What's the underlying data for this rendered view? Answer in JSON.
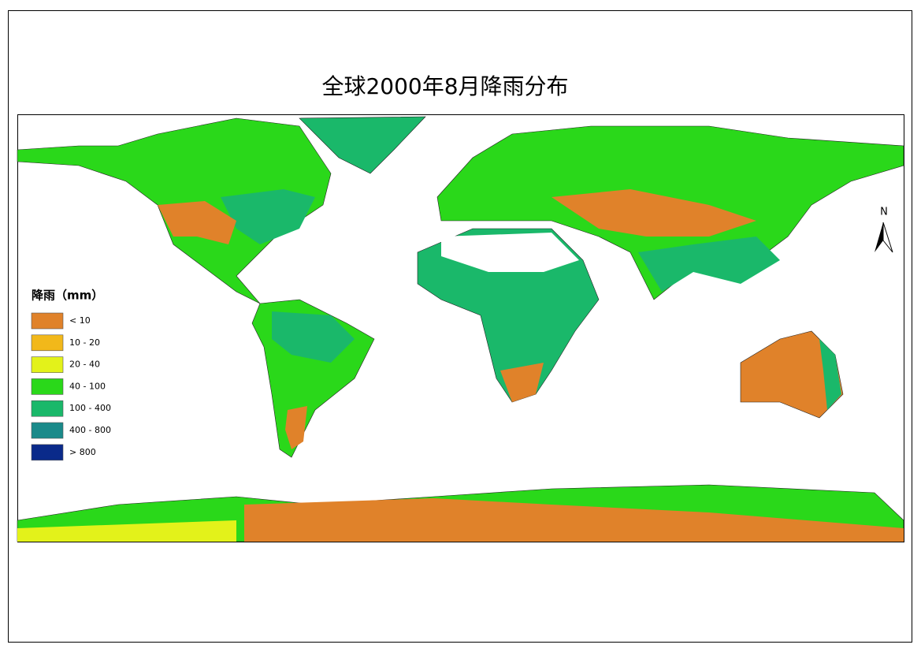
{
  "title": "全球2000年8月降雨分布",
  "north_label": "N",
  "legend": {
    "title": "降雨（mm）",
    "items": [
      {
        "label": "< 10",
        "color": "#e0822a"
      },
      {
        "label": "10 - 20",
        "color": "#f2b81a"
      },
      {
        "label": "20 - 40",
        "color": "#e3f21a"
      },
      {
        "label": "40 - 100",
        "color": "#2ad81a"
      },
      {
        "label": "100 - 400",
        "color": "#1ab86a"
      },
      {
        "label": "400 - 800",
        "color": "#1a8a8a"
      },
      {
        "label": "> 800",
        "color": "#0a2a8a"
      }
    ]
  }
}
